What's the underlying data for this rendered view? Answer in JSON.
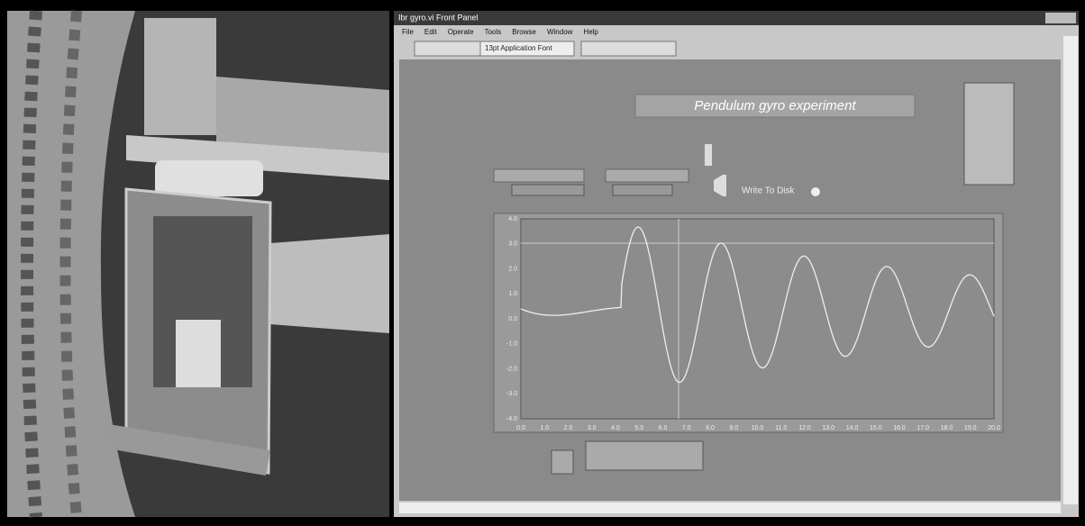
{
  "window": {
    "title": "Ibr gyro.vi Front Panel",
    "menu": [
      "File",
      "Edit",
      "Operate",
      "Tools",
      "Browse",
      "Window",
      "Help"
    ],
    "font": "13pt Application Font"
  },
  "panel": {
    "title": "Pendulum gyro experiment",
    "write_label": "Write To Disk",
    "graph": {
      "yticks": [
        "4.0",
        "3.0",
        "2.0",
        "1.0",
        "0.0",
        "-1.0",
        "-2.0",
        "-3.0",
        "-4.0"
      ],
      "xticks": [
        "0.0",
        "1.0",
        "2.0",
        "3.0",
        "4.0",
        "5.0",
        "6.0",
        "7.0",
        "8.0",
        "9.0",
        "10.0",
        "11.0",
        "12.0",
        "13.0",
        "14.0",
        "15.0",
        "16.0",
        "17.0",
        "18.0",
        "19.0",
        "20.0"
      ]
    }
  }
}
